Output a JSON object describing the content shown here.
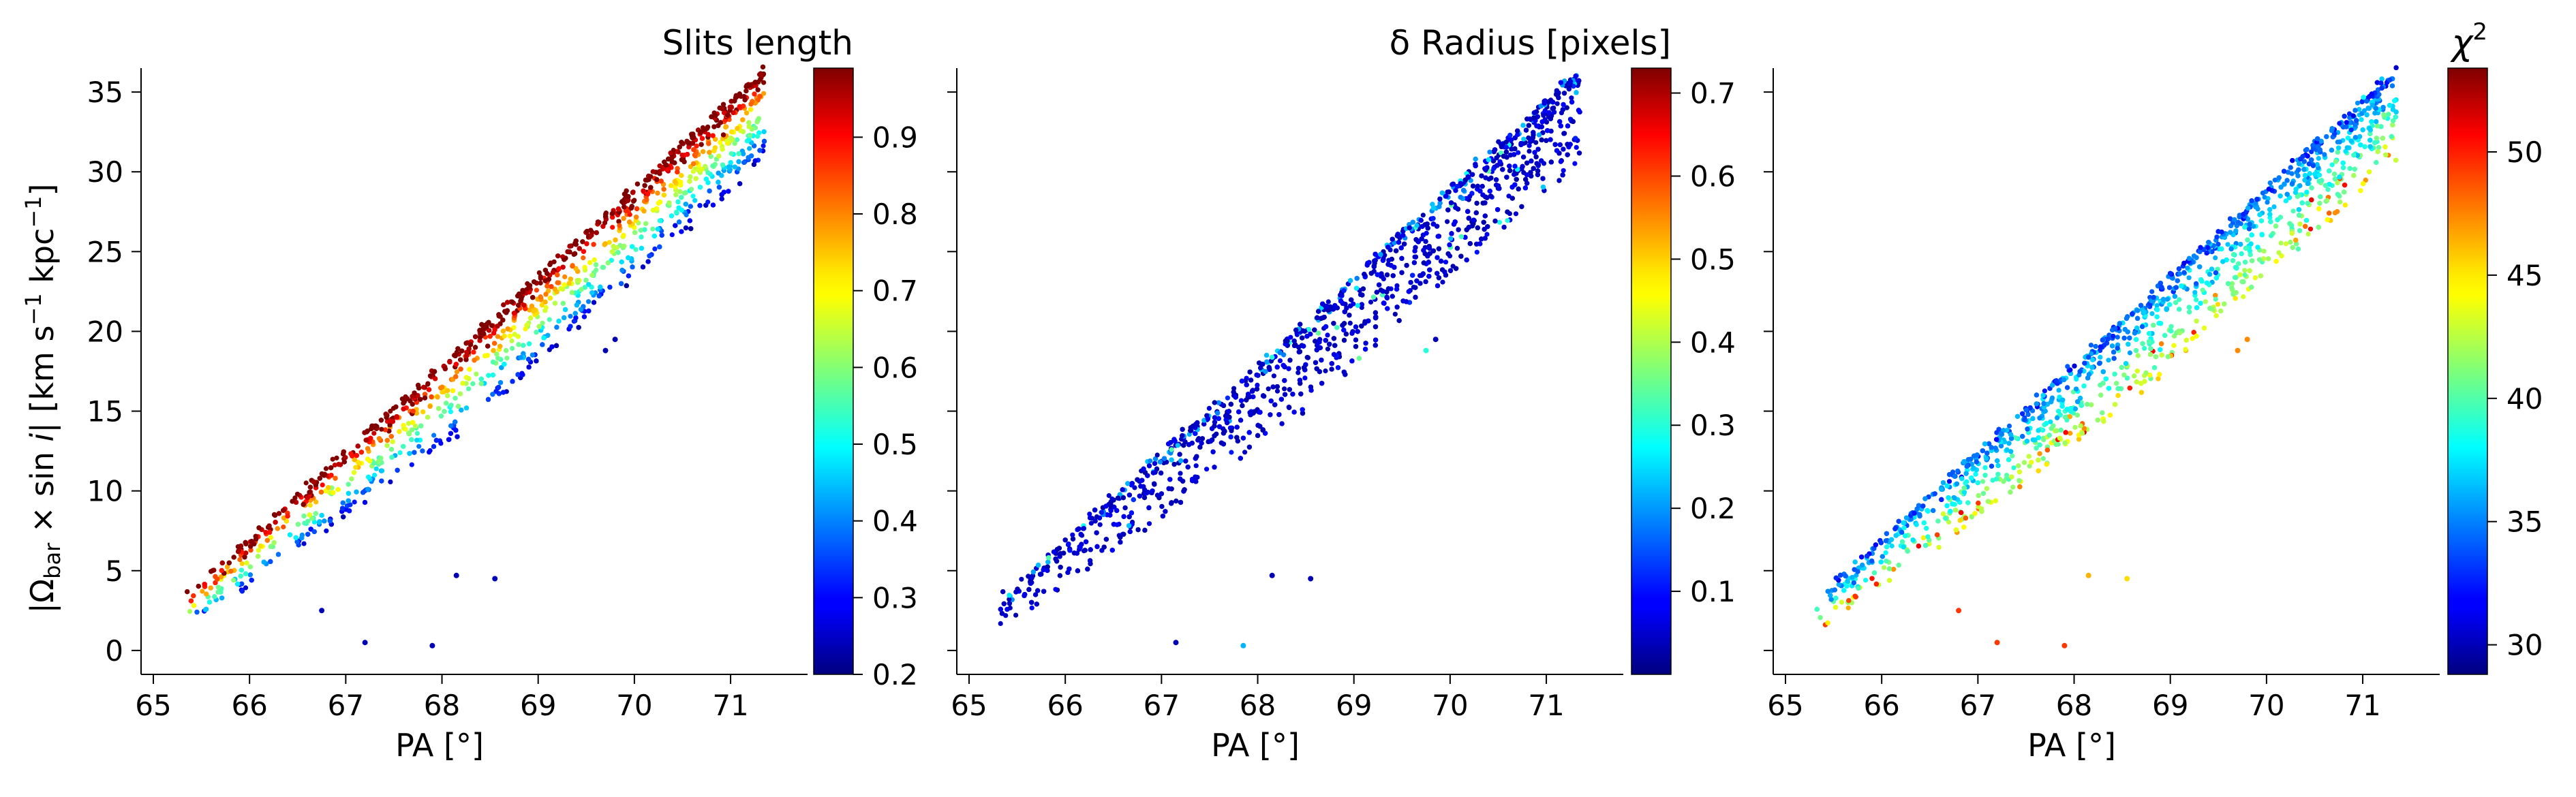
{
  "figure": {
    "ylabel_main": "|Ω",
    "ylabel_sub": "bar",
    "ylabel_mid": " × sin ",
    "ylabel_i": "i",
    "ylabel_unit": "|  [km s",
    "ylabel_exp1": "−1",
    "ylabel_kpc": " kpc",
    "ylabel_exp2": "−1",
    "ylabel_close": "]"
  },
  "chart_data": [
    {
      "type": "scatter",
      "xlabel": "PA [°]",
      "ylabel": "|Ω_bar × sin i|  [km s−1 kpc−1]",
      "xlim": [
        65,
        71.8
      ],
      "ylim": [
        -1.5,
        36.5
      ],
      "xticks": [
        65,
        66,
        67,
        68,
        69,
        70,
        71
      ],
      "yticks": [
        0,
        5,
        10,
        15,
        20,
        25,
        30,
        35
      ],
      "colorbar": {
        "label": "Slits length",
        "cmap": "jet",
        "range": [
          0.2,
          0.99
        ],
        "ticks": [
          0.2,
          0.3,
          0.4,
          0.5,
          0.6,
          0.7,
          0.8,
          0.9
        ]
      },
      "color_variable": "slit_length",
      "band": {
        "x_range": [
          65.3,
          71.35
        ],
        "slope": 5.5,
        "intercept_at_65": 0.2,
        "width": 5.5
      },
      "outliers": [
        {
          "x": 66.75,
          "y": 2.5,
          "c": 0.24
        },
        {
          "x": 67.2,
          "y": 0.5,
          "c": 0.24
        },
        {
          "x": 67.9,
          "y": 0.3,
          "c": 0.24
        },
        {
          "x": 68.15,
          "y": 4.7,
          "c": 0.24
        },
        {
          "x": 68.55,
          "y": 4.5,
          "c": 0.24
        },
        {
          "x": 69.7,
          "y": 18.8,
          "c": 0.24
        },
        {
          "x": 69.8,
          "y": 19.5,
          "c": 0.24
        }
      ],
      "grid": false
    },
    {
      "type": "scatter",
      "xlabel": "PA [°]",
      "ylabel": "",
      "xlim": [
        65,
        71.8
      ],
      "ylim": [
        -1.5,
        36.5
      ],
      "xticks": [
        65,
        66,
        67,
        68,
        69,
        70,
        71
      ],
      "yticks": [],
      "colorbar": {
        "label": "δ Radius [pixels]",
        "cmap": "jet",
        "range": [
          0.0,
          0.73
        ],
        "ticks": [
          0.1,
          0.2,
          0.3,
          0.4,
          0.5,
          0.6,
          0.7
        ]
      },
      "color_variable": "delta_radius",
      "band": {
        "x_range": [
          65.3,
          71.35
        ],
        "slope": 5.5,
        "intercept_at_65": 0.2,
        "width": 5.5
      },
      "outliers": [
        {
          "x": 67.15,
          "y": 0.5,
          "c": 0.04
        },
        {
          "x": 67.85,
          "y": 0.3,
          "c": 0.22
        },
        {
          "x": 68.15,
          "y": 4.7,
          "c": 0.04
        },
        {
          "x": 68.55,
          "y": 4.5,
          "c": 0.04
        },
        {
          "x": 69.75,
          "y": 18.8,
          "c": 0.3
        },
        {
          "x": 69.85,
          "y": 19.5,
          "c": 0.04
        }
      ],
      "grid": false
    },
    {
      "type": "scatter",
      "xlabel": "PA [°]",
      "ylabel": "",
      "xlim": [
        65,
        71.8
      ],
      "ylim": [
        -1.5,
        36.5
      ],
      "xticks": [
        65,
        66,
        67,
        68,
        69,
        70,
        71
      ],
      "yticks": [],
      "colorbar": {
        "label": "χ",
        "label_sup": "2",
        "cmap": "jet",
        "range": [
          28.8,
          53.4
        ],
        "ticks": [
          30,
          35,
          40,
          45,
          50
        ]
      },
      "color_variable": "chi2",
      "band": {
        "x_range": [
          65.3,
          71.35
        ],
        "slope": 5.5,
        "intercept_at_65": 0.2,
        "width": 5.5
      },
      "outliers": [
        {
          "x": 66.8,
          "y": 2.5,
          "c": 49
        },
        {
          "x": 67.2,
          "y": 0.5,
          "c": 49
        },
        {
          "x": 67.9,
          "y": 0.3,
          "c": 49
        },
        {
          "x": 68.15,
          "y": 4.7,
          "c": 46
        },
        {
          "x": 68.55,
          "y": 4.5,
          "c": 45
        },
        {
          "x": 69.7,
          "y": 18.8,
          "c": 47
        },
        {
          "x": 69.8,
          "y": 19.5,
          "c": 47
        }
      ],
      "grid": false
    }
  ]
}
